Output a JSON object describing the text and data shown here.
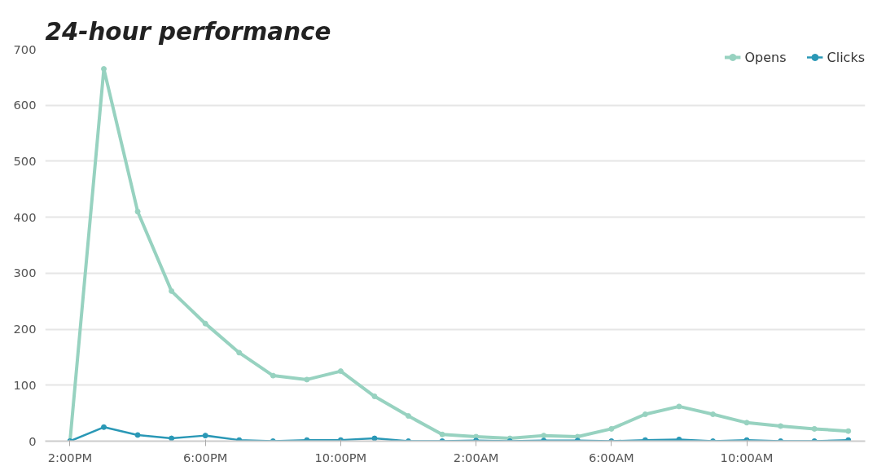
{
  "chart_data": {
    "type": "line",
    "title": "24-hour performance",
    "x": [
      "2000-01-01T14:00",
      "2000-01-01T15:00",
      "2000-01-01T16:00",
      "2000-01-01T17:00",
      "2000-01-01T18:00",
      "2000-01-01T19:00",
      "2000-01-01T20:00",
      "2000-01-01T21:00",
      "2000-01-01T22:00",
      "2000-01-01T23:00",
      "2000-01-02T00:00",
      "2000-01-02T01:00",
      "2000-01-02T02:00",
      "2000-01-02T03:00",
      "2000-01-02T04:00",
      "2000-01-02T05:00",
      "2000-01-02T06:00",
      "2000-01-02T07:00",
      "2000-01-02T08:00",
      "2000-01-02T09:00",
      "2000-01-02T10:00",
      "2000-01-02T11:00",
      "2000-01-02T12:00",
      "2000-01-02T13:00"
    ],
    "series": [
      {
        "name": "Opens",
        "color": "#97d2c0",
        "values": [
          0,
          665,
          410,
          268,
          210,
          158,
          117,
          110,
          125,
          80,
          45,
          12,
          8,
          5,
          10,
          8,
          22,
          48,
          62,
          48,
          33,
          27,
          22,
          18
        ]
      },
      {
        "name": "Clicks",
        "color": "#2a98b6",
        "values": [
          0,
          25,
          11,
          5,
          10,
          2,
          0,
          2,
          2,
          5,
          0,
          0,
          1,
          0,
          1,
          1,
          0,
          2,
          3,
          0,
          2,
          0,
          0,
          2
        ]
      }
    ],
    "xlim": [
      "2000-01-01T13:16",
      "2000-01-02T13:30"
    ],
    "xticks": [
      {
        "value": "2000-01-01T14:00",
        "label": "2:00PM"
      },
      {
        "value": "2000-01-01T18:00",
        "label": "6:00PM"
      },
      {
        "value": "2000-01-01T22:00",
        "label": "10:00PM"
      },
      {
        "value": "2000-01-02T02:00",
        "label": "2:00AM"
      },
      {
        "value": "2000-01-02T06:00",
        "label": "6:00AM"
      },
      {
        "value": "2000-01-02T10:00",
        "label": "10:00AM"
      }
    ],
    "ylim": [
      0,
      700
    ],
    "yticks": [
      0,
      100,
      200,
      300,
      400,
      500,
      600,
      700
    ],
    "grid": "y",
    "legend": "top right",
    "marker": "circle",
    "line_style": "solid"
  }
}
